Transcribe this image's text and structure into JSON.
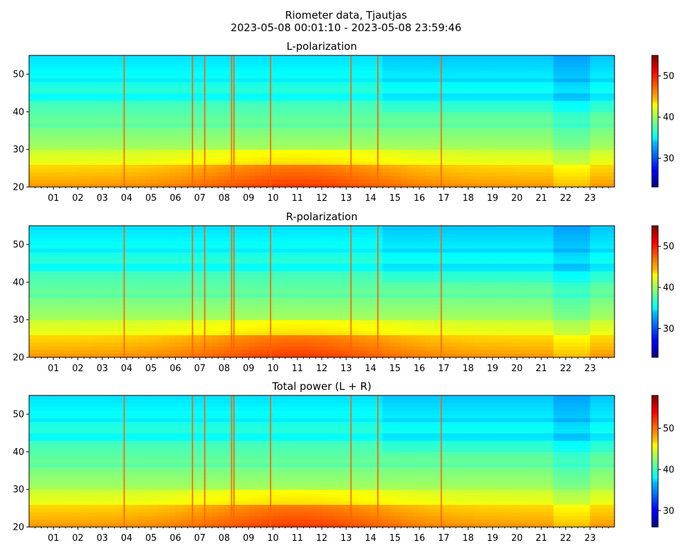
{
  "figure": {
    "title_line1": "Riometer data, Tjautjas",
    "title_line2": "2023-05-08 00:01:10 - 2023-05-08 23:59:46"
  },
  "chart_data": [
    {
      "type": "heatmap",
      "title": "L-polarization",
      "xlabel": "",
      "ylabel": "",
      "xlim": [
        0,
        24
      ],
      "ylim": [
        20,
        55
      ],
      "x_ticks": [
        "01",
        "02",
        "03",
        "04",
        "05",
        "06",
        "07",
        "08",
        "09",
        "10",
        "11",
        "12",
        "13",
        "14",
        "15",
        "16",
        "17",
        "18",
        "19",
        "20",
        "21",
        "22",
        "23"
      ],
      "y_ticks": [
        20,
        30,
        40,
        50
      ],
      "colorbar": {
        "range": [
          23,
          55
        ],
        "ticks": [
          30,
          40,
          50
        ],
        "colormap": "jet"
      },
      "base_value_low": 44,
      "base_value_high": 34,
      "spikes_hours": [
        3.9,
        6.7,
        7.2,
        8.3,
        8.4,
        9.9,
        13.2,
        14.3,
        16.9
      ]
    },
    {
      "type": "heatmap",
      "title": "R-polarization",
      "xlabel": "",
      "ylabel": "",
      "xlim": [
        0,
        24
      ],
      "ylim": [
        20,
        55
      ],
      "x_ticks": [
        "01",
        "02",
        "03",
        "04",
        "05",
        "06",
        "07",
        "08",
        "09",
        "10",
        "11",
        "12",
        "13",
        "14",
        "15",
        "16",
        "17",
        "18",
        "19",
        "20",
        "21",
        "22",
        "23"
      ],
      "y_ticks": [
        20,
        30,
        40,
        50
      ],
      "colorbar": {
        "range": [
          23,
          55
        ],
        "ticks": [
          30,
          40,
          50
        ],
        "colormap": "jet"
      },
      "base_value_low": 44,
      "base_value_high": 34,
      "spikes_hours": [
        3.9,
        6.7,
        7.2,
        8.3,
        8.4,
        9.9,
        13.2,
        14.3,
        16.9
      ]
    },
    {
      "type": "heatmap",
      "title": "Total power (L + R)",
      "xlabel": "",
      "ylabel": "",
      "xlim": [
        0,
        24
      ],
      "ylim": [
        20,
        55
      ],
      "x_ticks": [
        "01",
        "02",
        "03",
        "04",
        "05",
        "06",
        "07",
        "08",
        "09",
        "10",
        "11",
        "12",
        "13",
        "14",
        "15",
        "16",
        "17",
        "18",
        "19",
        "20",
        "21",
        "22",
        "23"
      ],
      "y_ticks": [
        20,
        30,
        40,
        50
      ],
      "colorbar": {
        "range": [
          26,
          58
        ],
        "ticks": [
          30,
          40,
          50
        ],
        "colormap": "jet"
      },
      "base_value_low": 47,
      "base_value_high": 37,
      "spikes_hours": [
        3.9,
        6.7,
        7.2,
        8.3,
        8.4,
        9.9,
        13.2,
        14.3,
        16.9
      ]
    }
  ]
}
